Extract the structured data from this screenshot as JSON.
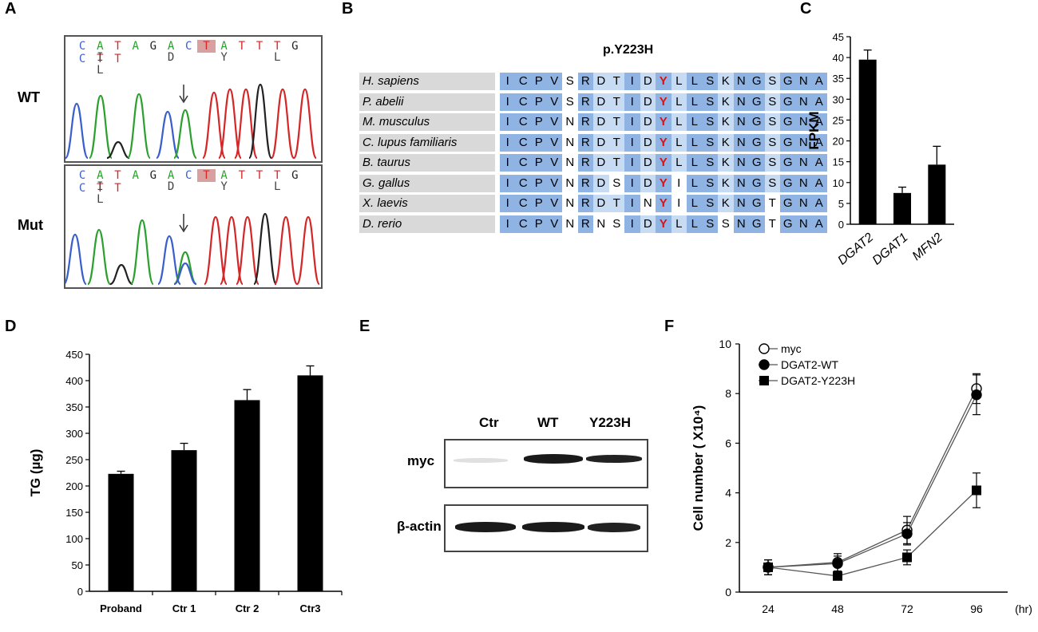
{
  "panels": {
    "A": {
      "letter": "A",
      "sequence": [
        "C",
        "A",
        "T",
        "A",
        "G",
        "A",
        "C",
        "T",
        "A",
        "T",
        "T",
        "T",
        "G",
        "C",
        "T",
        "T"
      ],
      "sequence_colors": [
        "#3a5fcd",
        "#2ca02c",
        "#d62728",
        "#2ca02c",
        "#222",
        "#2ca02c",
        "#3a5fcd",
        "#d62728",
        "#2ca02c",
        "#d62728",
        "#d62728",
        "#d62728",
        "#222",
        "#3a5fcd",
        "#d62728",
        "#d62728"
      ],
      "amino_acids": [
        "I",
        "D",
        "Y",
        "L",
        "L"
      ],
      "wt_label": "WT",
      "mut_label": "Mut"
    },
    "B": {
      "letter": "B",
      "title": "p.Y223H",
      "species": [
        "H. sapiens",
        "P. abelii",
        "M. musculus",
        "C. lupus familiaris",
        "B. taurus",
        "G. gallus",
        "X. laevis",
        "D. rerio"
      ],
      "sequences": [
        "ICPVSRDTIDYLLSKNGSGNA",
        "ICPVSRDTIDYLLSKNGSGNA",
        "ICPVNRDTIDYLLSKNGSGNA",
        "ICPVNRDTIDYLLSKNGSGNA",
        "ICPVNRDTIDYLLSKNGSGNA",
        "ICPVNRDSIDYILSKNGSGNA",
        "ICPVNRDTINYILSKNGTGNA",
        "ICPVNRNSIDYLLSSNGTGNA"
      ],
      "highlight_index": 10,
      "highlight_color": "#e01010"
    },
    "C": {
      "letter": "C",
      "chart_data": {
        "type": "bar",
        "categories": [
          "DGAT2",
          "DGAT1",
          "MFN2"
        ],
        "values": [
          39.5,
          7.5,
          14.3
        ],
        "errors": [
          2.3,
          1.4,
          4.4
        ],
        "ylabel": "FPKM",
        "ylim": [
          0,
          45
        ],
        "yticks": [
          0,
          5,
          10,
          15,
          20,
          25,
          30,
          35,
          40,
          45
        ]
      }
    },
    "D": {
      "letter": "D",
      "chart_data": {
        "type": "bar",
        "categories": [
          "Proband",
          "Ctr 1",
          "Ctr 2",
          "Ctr3"
        ],
        "values": [
          223,
          268,
          363,
          410
        ],
        "errors": [
          5,
          13,
          20,
          18
        ],
        "ylabel": "TG (µg)",
        "ylim": [
          0,
          450
        ],
        "yticks": [
          0,
          50,
          100,
          150,
          200,
          250,
          300,
          350,
          400,
          450
        ]
      }
    },
    "E": {
      "letter": "E",
      "lanes": [
        "Ctr",
        "WT",
        "Y223H"
      ],
      "rows": [
        "myc",
        "β-actin"
      ]
    },
    "F": {
      "letter": "F",
      "chart_data": {
        "type": "line",
        "x": [
          24,
          48,
          72,
          96
        ],
        "xticks": [
          "24",
          "48",
          "72",
          "96"
        ],
        "xunit": "(hr)",
        "ylabel": "Cell number ( X10⁴)",
        "ylim": [
          0,
          10
        ],
        "yticks": [
          0,
          2,
          4,
          6,
          8,
          10
        ],
        "legend_position": "top-left",
        "series": [
          {
            "name": "myc",
            "marker": "open-circle",
            "values": [
              1.0,
              1.2,
              2.5,
              8.2
            ],
            "errors": [
              0.3,
              0.35,
              0.55,
              0.6
            ]
          },
          {
            "name": "DGAT2-WT",
            "marker": "filled-circle",
            "values": [
              1.0,
              1.15,
              2.35,
              7.95
            ],
            "errors": [
              0.3,
              0.3,
              0.45,
              0.8
            ]
          },
          {
            "name": "DGAT2-Y223H",
            "marker": "filled-square",
            "values": [
              1.0,
              0.65,
              1.4,
              4.1
            ],
            "errors": [
              0.3,
              0.1,
              0.3,
              0.7
            ]
          }
        ]
      }
    }
  }
}
